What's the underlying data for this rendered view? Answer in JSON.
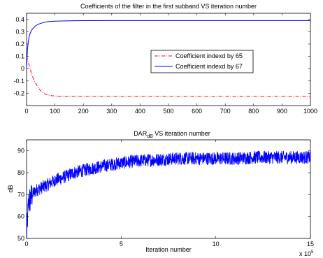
{
  "chart_data": [
    {
      "type": "line",
      "title": "Coefficients of the filter in the first subband VS iteration number",
      "xlabel": "",
      "ylabel": "",
      "xlim": [
        0,
        1000
      ],
      "ylim": [
        -0.3,
        0.45
      ],
      "xticks": [
        "0",
        "100",
        "200",
        "300",
        "400",
        "500",
        "600",
        "700",
        "800",
        "900",
        "1000"
      ],
      "yticks": [
        "-0.2",
        "-0.1",
        "0",
        "0.1",
        "0.2",
        "0.3",
        "0.4"
      ],
      "legend_position": "center-right",
      "series": [
        {
          "name": "Coefficient indexd by 65",
          "color": "#ff0000",
          "style": "dash-dot",
          "x": [
            0,
            10,
            20,
            30,
            40,
            50,
            60,
            70,
            80,
            90,
            100,
            120,
            150,
            200,
            300,
            500,
            700,
            1000
          ],
          "y": [
            0.1,
            0.02,
            -0.06,
            -0.11,
            -0.15,
            -0.18,
            -0.2,
            -0.21,
            -0.216,
            -0.22,
            -0.222,
            -0.224,
            -0.225,
            -0.225,
            -0.225,
            -0.225,
            -0.225,
            -0.225
          ]
        },
        {
          "name": "Coefficient indexd by 67",
          "color": "#0000ff",
          "style": "solid",
          "x": [
            0,
            3,
            6,
            10,
            15,
            20,
            30,
            40,
            50,
            60,
            70,
            80,
            100,
            150,
            200,
            300,
            500,
            700,
            1000
          ],
          "y": [
            0.0,
            0.15,
            0.22,
            0.27,
            0.3,
            0.32,
            0.345,
            0.36,
            0.368,
            0.375,
            0.38,
            0.383,
            0.386,
            0.389,
            0.39,
            0.391,
            0.391,
            0.391,
            0.391
          ]
        }
      ]
    },
    {
      "type": "line",
      "title": "DAR",
      "title_subscript": "dB",
      "title_suffix": " VS iteration number",
      "xlabel": "Iteration number",
      "ylabel": "dB",
      "xlim": [
        0,
        15
      ],
      "ylim": [
        50,
        95
      ],
      "x_multiplier": "x 10",
      "x_multiplier_exp": "5",
      "xticks": [
        "0",
        "5",
        "10",
        "15"
      ],
      "yticks": [
        "50",
        "60",
        "70",
        "80",
        "90"
      ],
      "series": [
        {
          "name": "",
          "color": "#0000ff",
          "style": "solid",
          "x": [
            0,
            0.1,
            0.3,
            0.5,
            1,
            1.5,
            2,
            2.5,
            3,
            4,
            5,
            6,
            7,
            8,
            9,
            10,
            11,
            12,
            13,
            14,
            15
          ],
          "y": [
            51,
            66,
            70,
            72,
            74,
            76.5,
            78,
            80,
            81,
            83,
            84.5,
            85.5,
            86,
            86.5,
            86.5,
            86.5,
            86.5,
            87,
            87,
            87,
            87
          ],
          "noise_amplitude_db": 3
        }
      ]
    }
  ]
}
